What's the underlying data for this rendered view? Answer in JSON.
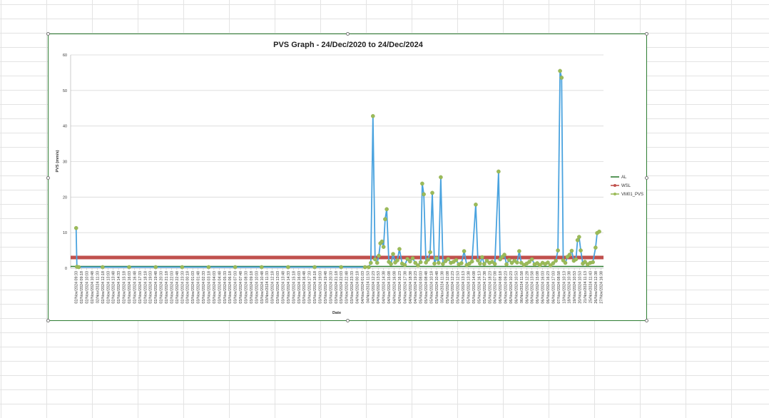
{
  "chart_data": {
    "type": "line",
    "title": "PVS  Graph - 24/Dec/2020 to 24/Dec/2024",
    "xlabel": "Date",
    "ylabel": "PVS (mm/s)",
    "ylim": [
      0,
      60
    ],
    "yticks": [
      0,
      10,
      20,
      30,
      40,
      50,
      60
    ],
    "grid": true,
    "legend_position": "right",
    "x_tick_labels": [
      "02/Nov/2024 09:33",
      "02/Nov/2024 09:18",
      "02/Nov/2024 10:03",
      "02/Nov/2024 10:48",
      "02/Nov/2024 11:33",
      "02/Nov/2024 12:18",
      "02/Nov/2024 13:03",
      "02/Nov/2024 13:48",
      "02/Nov/2024 14:33",
      "02/Nov/2024 15:18",
      "02/Nov/2024 16:03",
      "02/Nov/2024 16:48",
      "02/Nov/2024 17:33",
      "02/Nov/2024 18:18",
      "02/Nov/2024 19:03",
      "02/Nov/2024 19:48",
      "02/Nov/2024 20:33",
      "02/Nov/2024 21:18",
      "02/Nov/2024 22:03",
      "02/Nov/2024 22:48",
      "02/Nov/2024 23:33",
      "03/Nov/2024 00:18",
      "03/Nov/2024 01:03",
      "03/Nov/2024 01:48",
      "03/Nov/2024 02:33",
      "03/Nov/2024 03:18",
      "03/Nov/2024 04:03",
      "03/Nov/2024 04:48",
      "03/Nov/2024 05:33",
      "03/Nov/2024 06:18",
      "03/Nov/2024 07:03",
      "03/Nov/2024 07:48",
      "03/Nov/2024 08:33",
      "03/Nov/2024 09:18",
      "03/Nov/2024 10:03",
      "03/Nov/2024 10:48",
      "03/Nov/2024 11:33",
      "03/Nov/2024 12:18",
      "03/Nov/2024 13:03",
      "03/Nov/2024 13:48",
      "03/Nov/2024 14:33",
      "03/Nov/2024 15:18",
      "03/Nov/2024 16:03",
      "03/Nov/2024 16:48",
      "03/Nov/2024 17:33",
      "03/Nov/2024 18:18",
      "03/Nov/2024 19:03",
      "03/Nov/2024 19:48",
      "03/Nov/2024 20:33",
      "03/Nov/2024 21:18",
      "03/Nov/2024 22:03",
      "03/Nov/2024 22:48",
      "03/Nov/2024 23:33",
      "04/Nov/2024 00:18",
      "04/Nov/2024 01:03",
      "04/Nov/2024 11:53",
      "04/Nov/2024 12:23",
      "04/Nov/2024 13:53",
      "04/Nov/2024 14:38",
      "04/Nov/2024 15:08",
      "04/Nov/2024 16:08",
      "04/Nov/2024 16:23",
      "04/Nov/2024 17:38",
      "04/Nov/2024 18:38",
      "04/Nov/2024 19:23",
      "05/Nov/2024 08:03",
      "05/Nov/2024 08:48",
      "05/Nov/2024 10:18",
      "05/Nov/2024 10:48",
      "05/Nov/2024 11:38",
      "05/Nov/2024 12:08",
      "05/Nov/2024 12:23",
      "05/Nov/2024 12:53",
      "05/Nov/2024 13:13",
      "05/Nov/2024 13:38",
      "05/Nov/2024 14:08",
      "05/Nov/2024 16:13",
      "05/Nov/2024 17:38",
      "05/Nov/2024 18:23",
      "06/Nov/2024 07:08",
      "06/Nov/2024 08:18",
      "06/Nov/2024 09:23",
      "06/Nov/2024 10:23",
      "06/Nov/2024 10:53",
      "06/Nov/2024 11:58",
      "06/Nov/2024 12:28",
      "06/Nov/2024 13:58",
      "06/Nov/2024 15:08",
      "06/Nov/2024 16:03",
      "06/Nov/2024 16:23",
      "06/Nov/2024 17:03",
      "07/Nov/2024 08:58",
      "13/Nov/2024 10:13",
      "18/Nov/2024 10:38",
      "19/Nov/2024 10:53",
      "20/Nov/2024 10:53",
      "21/Nov/2024 11:13",
      "25/Nov/2024 11:43",
      "26/Nov/2024 12:38",
      "27/Nov/2024 16:38"
    ],
    "series": [
      {
        "name": "AL",
        "color": "#2e7d32",
        "values": [
          0.5,
          0.5
        ]
      },
      {
        "name": "WSL",
        "color": "#c0504d",
        "values": [
          3,
          3
        ]
      },
      {
        "name": "VM01_PVS",
        "color": "#4aa3df",
        "marker_color": "#9bbb59",
        "points": [
          [
            0,
            11.3
          ],
          [
            0.15,
            0.4
          ],
          [
            0.5,
            0.3
          ],
          [
            5,
            0.3
          ],
          [
            10,
            0.3
          ],
          [
            15,
            0.3
          ],
          [
            20,
            0.3
          ],
          [
            25,
            0.3
          ],
          [
            30,
            0.3
          ],
          [
            35,
            0.3
          ],
          [
            40,
            0.3
          ],
          [
            45,
            0.3
          ],
          [
            50,
            0.3
          ],
          [
            54.5,
            0.3
          ],
          [
            55.2,
            0.3
          ],
          [
            55.6,
            1.5
          ],
          [
            56,
            42.8
          ],
          [
            56.4,
            2.5
          ],
          [
            56.8,
            1.5
          ],
          [
            57.1,
            3.5
          ],
          [
            57.4,
            7
          ],
          [
            57.7,
            7.5
          ],
          [
            58,
            6
          ],
          [
            58.3,
            13.8
          ],
          [
            58.6,
            16.6
          ],
          [
            59,
            1.8
          ],
          [
            59.4,
            1.2
          ],
          [
            59.8,
            4
          ],
          [
            60.2,
            1.6
          ],
          [
            60.6,
            2.2
          ],
          [
            61,
            5.4
          ],
          [
            61.5,
            1.3
          ],
          [
            62,
            0.9
          ],
          [
            62.5,
            2.6
          ],
          [
            63,
            1.9
          ],
          [
            63.5,
            2.8
          ],
          [
            64,
            1.5
          ],
          [
            64.5,
            0.8
          ],
          [
            65,
            1.7
          ],
          [
            65.3,
            23.8
          ],
          [
            65.6,
            20.8
          ],
          [
            66,
            1.6
          ],
          [
            66.4,
            2.4
          ],
          [
            66.8,
            4.5
          ],
          [
            67.2,
            21.2
          ],
          [
            67.6,
            1.3
          ],
          [
            68,
            2.8
          ],
          [
            68.4,
            1.5
          ],
          [
            68.8,
            25.6
          ],
          [
            69.2,
            1.2
          ],
          [
            69.7,
            2
          ],
          [
            70.2,
            2.6
          ],
          [
            70.7,
            1.5
          ],
          [
            71.2,
            1.8
          ],
          [
            71.7,
            2.3
          ],
          [
            72.2,
            1.1
          ],
          [
            72.7,
            1.4
          ],
          [
            73.2,
            4.8
          ],
          [
            73.7,
            0.9
          ],
          [
            74.2,
            1.3
          ],
          [
            74.7,
            1.9
          ],
          [
            75.4,
            17.9
          ],
          [
            75.8,
            2.2
          ],
          [
            76.2,
            1.3
          ],
          [
            76.6,
            3.1
          ],
          [
            77,
            1.2
          ],
          [
            77.5,
            2.1
          ],
          [
            78,
            1.5
          ],
          [
            78.5,
            1.8
          ],
          [
            79,
            1.2
          ],
          [
            79.7,
            27.2
          ],
          [
            80,
            2.5
          ],
          [
            80.4,
            3.2
          ],
          [
            80.8,
            3.8
          ],
          [
            81.2,
            1.1
          ],
          [
            81.7,
            2.3
          ],
          [
            82.2,
            1.5
          ],
          [
            82.7,
            2.1
          ],
          [
            83.2,
            1.6
          ],
          [
            83.6,
            4.8
          ],
          [
            84,
            1.5
          ],
          [
            84.5,
            0.9
          ],
          [
            85,
            1.3
          ],
          [
            85.5,
            1.8
          ],
          [
            86,
            2.5
          ],
          [
            86.5,
            1.1
          ],
          [
            87,
            1.4
          ],
          [
            87.5,
            0.9
          ],
          [
            88,
            1.5
          ],
          [
            88.5,
            1.2
          ],
          [
            89,
            1.6
          ],
          [
            89.5,
            0.8
          ],
          [
            90,
            1.4
          ],
          [
            90.5,
            2.1
          ],
          [
            90.9,
            5
          ],
          [
            91.3,
            55.5
          ],
          [
            91.6,
            53.6
          ],
          [
            91.9,
            2.2
          ],
          [
            92.3,
            1.5
          ],
          [
            92.7,
            3.2
          ],
          [
            93.1,
            3.8
          ],
          [
            93.5,
            4.9
          ],
          [
            93.9,
            2.1
          ],
          [
            94.3,
            2.5
          ],
          [
            94.6,
            7.9
          ],
          [
            94.9,
            8.8
          ],
          [
            95.2,
            5
          ],
          [
            95.6,
            1.3
          ],
          [
            96,
            1.8
          ],
          [
            96.5,
            1.1
          ],
          [
            97,
            1.5
          ],
          [
            97.5,
            1.7
          ],
          [
            98,
            5.8
          ],
          [
            98.3,
            9.9
          ],
          [
            98.7,
            10.3
          ]
        ]
      }
    ]
  }
}
